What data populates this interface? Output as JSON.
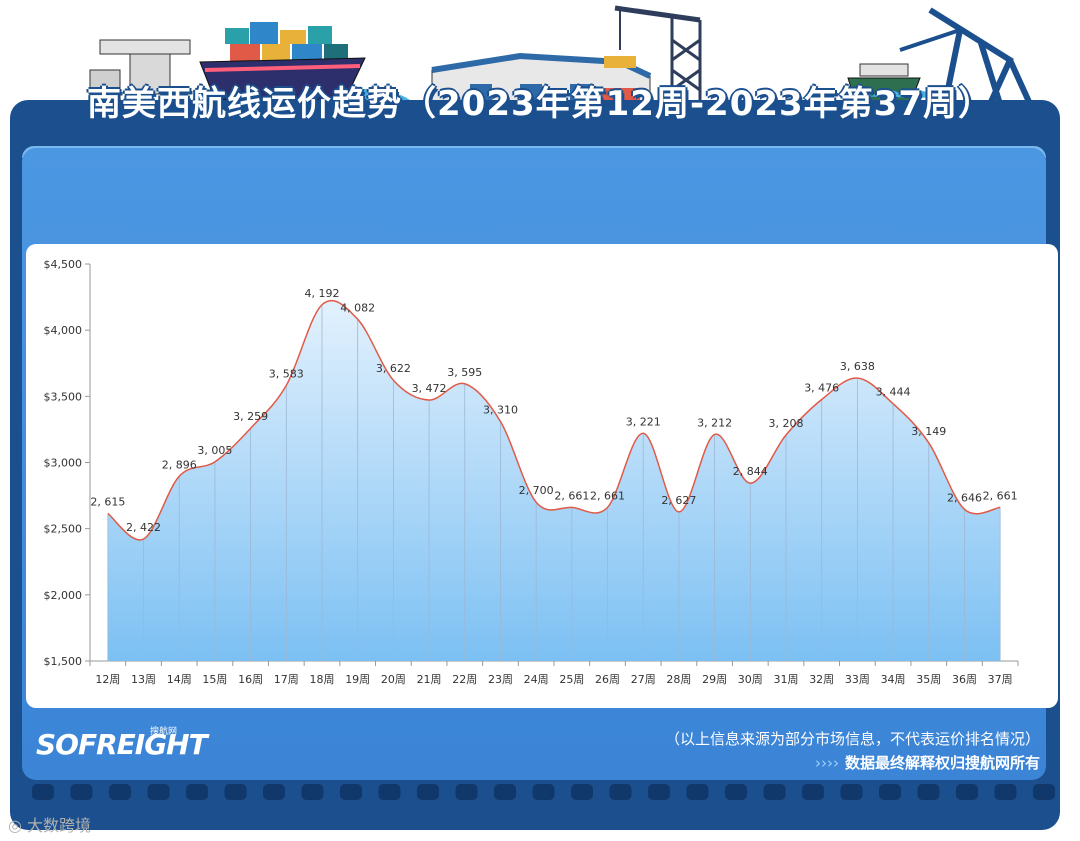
{
  "title": "南美西航线运价趋势（2023年第12周-2023年第37周）",
  "logo": "SOFREIGHT",
  "logo_sub": "搜航网",
  "footnote": "（以上信息来源为部分市场信息，不代表运价排名情况）",
  "copyright": "数据最终解释权归搜航网所有",
  "copyright_arrows": "››››",
  "footer_watermark": "大数跨境",
  "colors": {
    "frame": "#1b4f8e",
    "board": "#4c97e2",
    "line": "#e05a47",
    "area_top": "#c6e2fb",
    "area_bottom": "#7cc0f3"
  },
  "chart_data": {
    "type": "area",
    "title": "南美西航线运价趋势（2023年第12周-2023年第37周）",
    "xlabel": "",
    "ylabel": "",
    "ylim": [
      1500,
      4500
    ],
    "yticks": [
      "$1,500",
      "$2,000",
      "$2,500",
      "$3,000",
      "$3,500",
      "$4,000",
      "$4,500"
    ],
    "ytick_values": [
      1500,
      2000,
      2500,
      3000,
      3500,
      4000,
      4500
    ],
    "grid": false,
    "categories": [
      "12周",
      "13周",
      "14周",
      "15周",
      "16周",
      "17周",
      "18周",
      "19周",
      "20周",
      "21周",
      "22周",
      "23周",
      "24周",
      "25周",
      "26周",
      "27周",
      "28周",
      "29周",
      "30周",
      "31周",
      "32周",
      "33周",
      "34周",
      "35周",
      "36周",
      "37周"
    ],
    "values": [
      2615,
      2422,
      2896,
      3005,
      3259,
      3583,
      4192,
      4082,
      3622,
      3472,
      3595,
      3310,
      2700,
      2661,
      2661,
      3221,
      2627,
      3212,
      2844,
      3208,
      3476,
      3638,
      3444,
      3149,
      2646,
      2661
    ],
    "data_labels": [
      "2, 615",
      "2, 422",
      "2, 896",
      "3, 005",
      "3, 259",
      "3, 583",
      "4, 192",
      "4, 082",
      "3, 622",
      "3, 472",
      "3, 595",
      "3, 310",
      "2, 700",
      "2, 661",
      "2, 661",
      "3, 221",
      "2, 627",
      "3, 212",
      "2, 844",
      "3, 208",
      "3, 476",
      "3, 638",
      "3, 444",
      "3, 149",
      "2, 646",
      "2, 661"
    ]
  }
}
